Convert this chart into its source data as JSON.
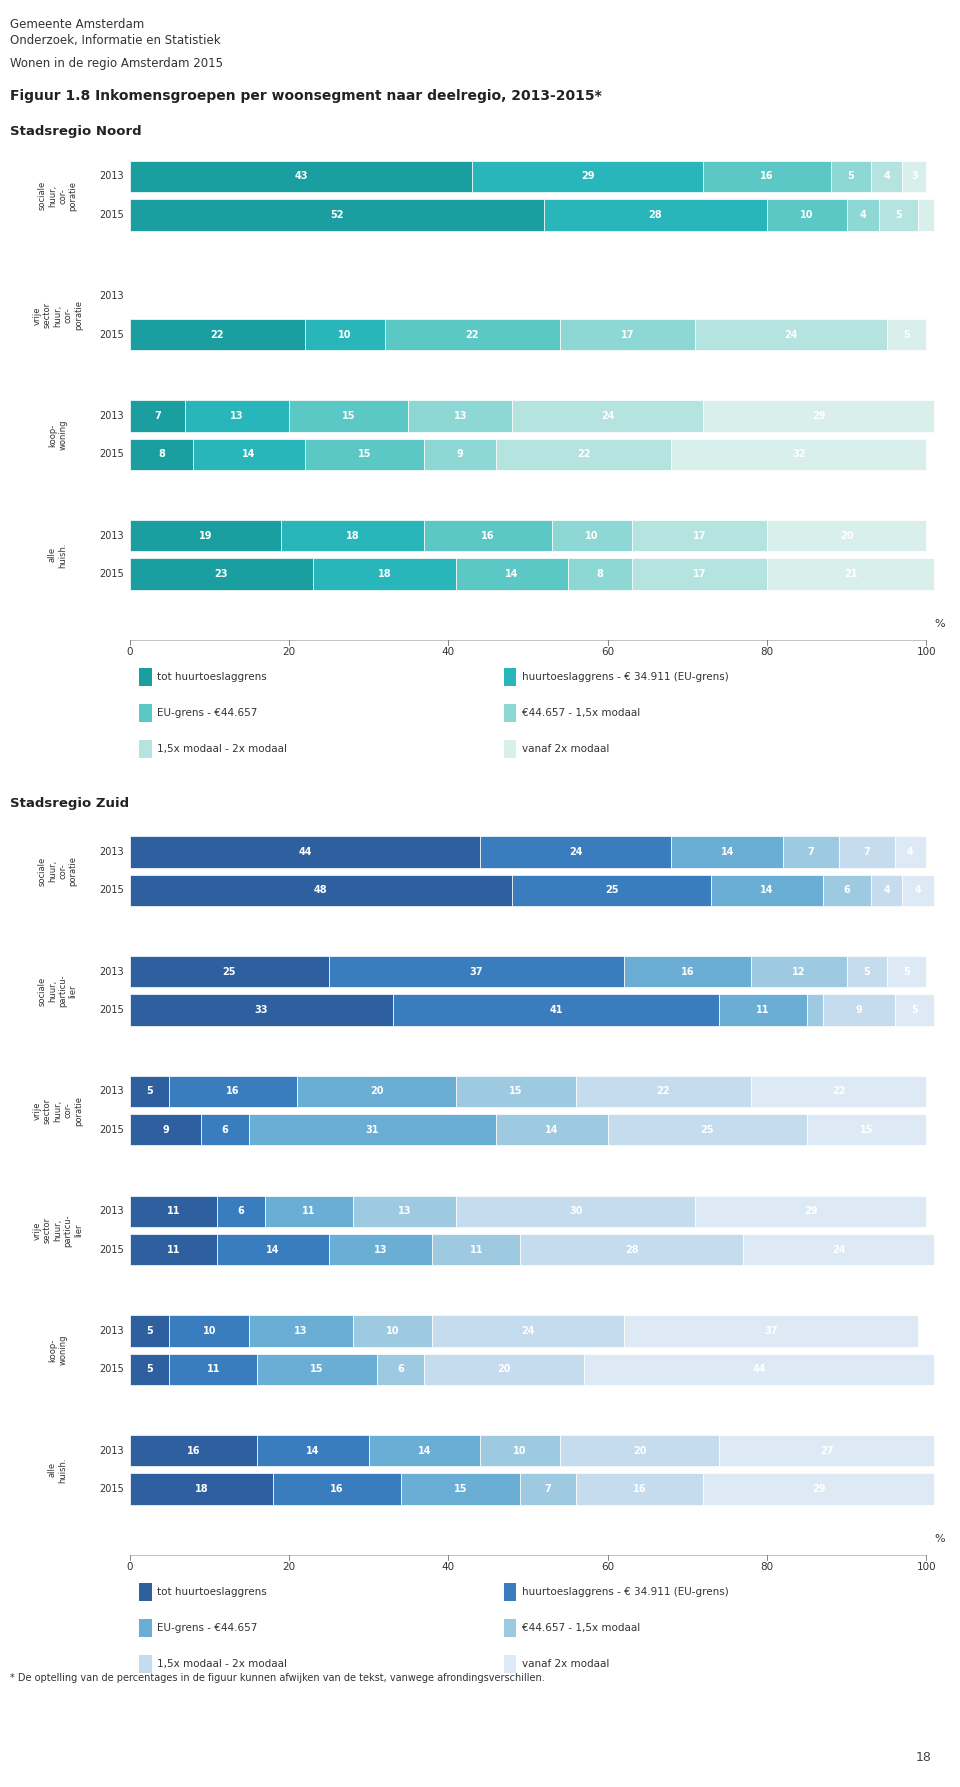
{
  "title_line1": "Gemeente Amsterdam",
  "title_line2": "Onderzoek, Informatie en Statistiek",
  "title_line3": "Wonen in de regio Amsterdam 2015",
  "fig_title": "Figuur 1.8 Inkomensgroepen per woonsegment naar deelregio, 2013-2015",
  "fig_title_star": "*",
  "section1_title": "Stadsregio Noord",
  "section2_title": "Stadsregio Zuid",
  "legend_items": [
    "tot huurtoeslaggrens",
    "huurtoeslaggrens - € 34.911 (EU-grens)",
    "EU-grens - €44.657",
    "€44.657 - 1,5x modaal",
    "1,5x modaal - 2x modaal",
    "vanaf 2x modaal"
  ],
  "noord_colors": [
    "#1b9ea0",
    "#29b6ba",
    "#5bc8c5",
    "#8dd8d4",
    "#b5e3df",
    "#d8efec"
  ],
  "zuid_colors": [
    "#2e5f9e",
    "#3a7dbf",
    "#6aadd5",
    "#9dcae0",
    "#c5dbee",
    "#ddeaf5"
  ],
  "noord_data": {
    "sociale huur corporatie": {
      "2013": [
        43,
        29,
        16,
        5,
        4,
        3
      ],
      "2015": [
        52,
        28,
        10,
        4,
        5,
        2
      ]
    },
    "vrije sector huur corporatie": {
      "2013": [
        0,
        0,
        0,
        0,
        0,
        0
      ],
      "2015": [
        22,
        10,
        22,
        17,
        24,
        5
      ]
    },
    "koopwoning": {
      "2013": [
        7,
        13,
        15,
        13,
        24,
        29
      ],
      "2015": [
        8,
        14,
        15,
        9,
        22,
        32
      ]
    },
    "alle huishoudens": {
      "2013": [
        19,
        18,
        16,
        10,
        17,
        20
      ],
      "2015": [
        23,
        18,
        14,
        8,
        17,
        21
      ]
    }
  },
  "noord_cat_keys": [
    "sociale huur corporatie",
    "vrije sector huur corporatie",
    "koopwoning",
    "alle huishoudens"
  ],
  "noord_cat_labels": [
    "sociale\nhuur,\ncor-\nporatie",
    "vrije\nsector\nhuur,\ncor-\nporatie",
    "koop-\nwoning",
    "alle\nhuish."
  ],
  "noord_cat_label_short": [
    "sociale\nhuur,\ncor-\nporatie",
    "vrije\nsector\nhuur,\ncor-\nporatie",
    "koop-\nwoning",
    "alle\nhuish."
  ],
  "zuid_data": {
    "sociale huur corporatie": {
      "2013": [
        44,
        24,
        14,
        7,
        7,
        4
      ],
      "2015": [
        48,
        25,
        14,
        6,
        4,
        4
      ]
    },
    "sociale huur particulier": {
      "2013": [
        25,
        37,
        16,
        12,
        5,
        5
      ],
      "2015": [
        33,
        41,
        11,
        2,
        9,
        5
      ]
    },
    "vrije sector huur corporatie": {
      "2013": [
        5,
        16,
        20,
        15,
        22,
        22
      ],
      "2015": [
        9,
        6,
        31,
        14,
        25,
        15
      ]
    },
    "vrije sector huur particulier": {
      "2013": [
        11,
        6,
        11,
        13,
        30,
        29
      ],
      "2015": [
        11,
        14,
        13,
        11,
        28,
        24
      ]
    },
    "koopwoning": {
      "2013": [
        5,
        10,
        13,
        10,
        24,
        37
      ],
      "2015": [
        5,
        11,
        15,
        6,
        20,
        44
      ]
    },
    "alle huishoudens": {
      "2013": [
        16,
        14,
        14,
        10,
        20,
        27
      ],
      "2015": [
        18,
        16,
        15,
        7,
        16,
        29
      ]
    }
  },
  "zuid_cat_keys": [
    "sociale huur corporatie",
    "sociale huur particulier",
    "vrije sector huur corporatie",
    "vrije sector huur particulier",
    "koopwoning",
    "alle huishoudens"
  ],
  "zuid_cat_labels": [
    "sociale\nhuur,\ncor-\nporatie",
    "sociale\nhuur,\nparticu-\nlier",
    "vrije\nsector\nhuur,\ncor-\nporatie",
    "vrije\nsector\nhuur,\nparticu-\nlier",
    "koop-\nwoning",
    "alle\nhuish."
  ],
  "footnote": "* De optelling van de percentages in de figuur kunnen afwijken van de tekst, vanwege afrondingsverschillen.",
  "page_number": "18"
}
